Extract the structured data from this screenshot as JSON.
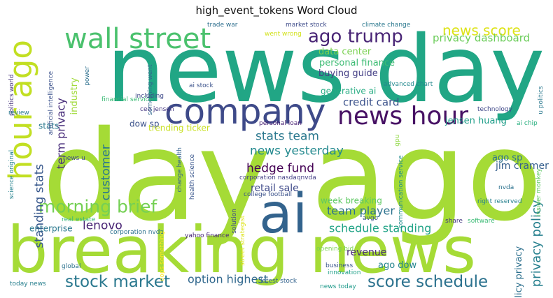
{
  "chart_data": {
    "type": "wordcloud",
    "title": "high_event_tokens Word Cloud",
    "words": [
      {
        "text": "day ago",
        "color": "#a5db36"
      },
      {
        "text": "news day",
        "color": "#21a685"
      },
      {
        "text": "breaking news",
        "color": "#a5db36"
      },
      {
        "text": "ai",
        "color": "#33638d"
      },
      {
        "text": "company",
        "color": "#3e4a89"
      },
      {
        "text": "hour ago",
        "color": "#c2df23"
      },
      {
        "text": "wall street",
        "color": "#4ac16d"
      },
      {
        "text": "news hour",
        "color": "#471164"
      },
      {
        "text": "ago trump",
        "color": "#482475"
      },
      {
        "text": "morning brief",
        "color": "#75d054"
      },
      {
        "text": "stock market",
        "color": "#2a788e"
      },
      {
        "text": "score schedule",
        "color": "#2c728e"
      },
      {
        "text": "news score",
        "color": "#dde318"
      },
      {
        "text": "privacy dashboard",
        "color": "#6ccd5a"
      },
      {
        "text": "data center",
        "color": "#7ad151"
      },
      {
        "text": "personal finance",
        "color": "#3dbc74"
      },
      {
        "text": "buying guide",
        "color": "#433e85"
      },
      {
        "text": "generative ai",
        "color": "#25ac82"
      },
      {
        "text": "credit card",
        "color": "#3b528b"
      },
      {
        "text": "stats team",
        "color": "#2a788e"
      },
      {
        "text": "news yesterday",
        "color": "#23898e"
      },
      {
        "text": "hedge fund",
        "color": "#440154"
      },
      {
        "text": "retail sale",
        "color": "#3e4989"
      },
      {
        "text": "team player",
        "color": "#2c728e"
      },
      {
        "text": "schedule standing",
        "color": "#20a386"
      },
      {
        "text": "lenovo",
        "color": "#482374"
      },
      {
        "text": "option highest",
        "color": "#31688e"
      },
      {
        "text": "privacy policy",
        "color": "#27808e"
      },
      {
        "text": "policy privacy",
        "color": "#2d708e"
      },
      {
        "text": "customer",
        "color": "#2a788e"
      },
      {
        "text": "standing stats",
        "color": "#38588c"
      },
      {
        "text": "term privacy",
        "color": "#472c7a"
      },
      {
        "text": "jensen huang",
        "color": "#1f9e89"
      },
      {
        "text": "jim cramer",
        "color": "#355f8d"
      },
      {
        "text": "ago sp",
        "color": "#2d708e"
      },
      {
        "text": "ago dow",
        "color": "#25858e"
      },
      {
        "text": "revenue",
        "color": "#482878"
      },
      {
        "text": "week breaking",
        "color": "#5ec962"
      },
      {
        "text": "trending ticker",
        "color": "#c8e020"
      },
      {
        "text": "dow sp",
        "color": "#3b528b"
      },
      {
        "text": "stats",
        "color": "#2a788e"
      },
      {
        "text": "industry",
        "color": "#a0da39"
      },
      {
        "text": "enterprise",
        "color": "#2a788e"
      },
      {
        "text": "trade war",
        "color": "#2e6f8e"
      },
      {
        "text": "market stock",
        "color": "#3e4c8a"
      },
      {
        "text": "climate change",
        "color": "#2a788e"
      },
      {
        "text": "went wrong",
        "color": "#d2e21b"
      },
      {
        "text": "something went",
        "color": "#31688e"
      },
      {
        "text": "ai stock",
        "color": "#3b528b"
      },
      {
        "text": "advanced chart",
        "color": "#23898e"
      },
      {
        "text": "financial service",
        "color": "#3bbb75"
      },
      {
        "text": "ceo jensen",
        "color": "#453882"
      },
      {
        "text": "personal loan",
        "color": "#482173"
      },
      {
        "text": "technology",
        "color": "#3f4788"
      },
      {
        "text": "ai chip",
        "color": "#29af7f"
      },
      {
        "text": "u politics",
        "color": "#2a788e"
      },
      {
        "text": "insider monkey",
        "color": "#5ec962"
      },
      {
        "text": "nvda",
        "color": "#2c728e"
      },
      {
        "text": "gpu",
        "color": "#8fd744"
      },
      {
        "text": "communication service",
        "color": "#228c8d"
      },
      {
        "text": "corporation nasdaqnvda",
        "color": "#433e85"
      },
      {
        "text": "college football",
        "color": "#3b528b"
      },
      {
        "text": "change health",
        "color": "#33638d"
      },
      {
        "text": "health science",
        "color": "#39568c"
      },
      {
        "text": "solution",
        "color": "#3e4989"
      },
      {
        "text": "street strategist",
        "color": "#dde318"
      },
      {
        "text": "avgo",
        "color": "#3b528b"
      },
      {
        "text": "share",
        "color": "#453781"
      },
      {
        "text": "software",
        "color": "#3bbb75"
      },
      {
        "text": "right reserved",
        "color": "#26818e"
      },
      {
        "text": "real estate",
        "color": "#35b779"
      },
      {
        "text": "corporation nvda",
        "color": "#2c728e"
      },
      {
        "text": "yahoo finance",
        "color": "#482878"
      },
      {
        "text": "oops something",
        "color": "#fde725"
      },
      {
        "text": "opening bid",
        "color": "#7ad151"
      },
      {
        "text": "business",
        "color": "#39568c"
      },
      {
        "text": "innovation",
        "color": "#1fa088"
      },
      {
        "text": "news today",
        "color": "#1f9a8a"
      },
      {
        "text": "latest stock",
        "color": "#33638d"
      },
      {
        "text": "global",
        "color": "#2c728e"
      },
      {
        "text": "today news",
        "color": "#277f8e"
      },
      {
        "text": "news u",
        "color": "#3e4a89"
      },
      {
        "text": "science original",
        "color": "#26828e"
      },
      {
        "text": "politics world",
        "color": "#46337e"
      },
      {
        "text": "review",
        "color": "#2a788e"
      },
      {
        "text": "artificial intelligence",
        "color": "#3b528b"
      },
      {
        "text": "power",
        "color": "#2d708e"
      },
      {
        "text": "including",
        "color": "#3e4a89"
      }
    ]
  }
}
